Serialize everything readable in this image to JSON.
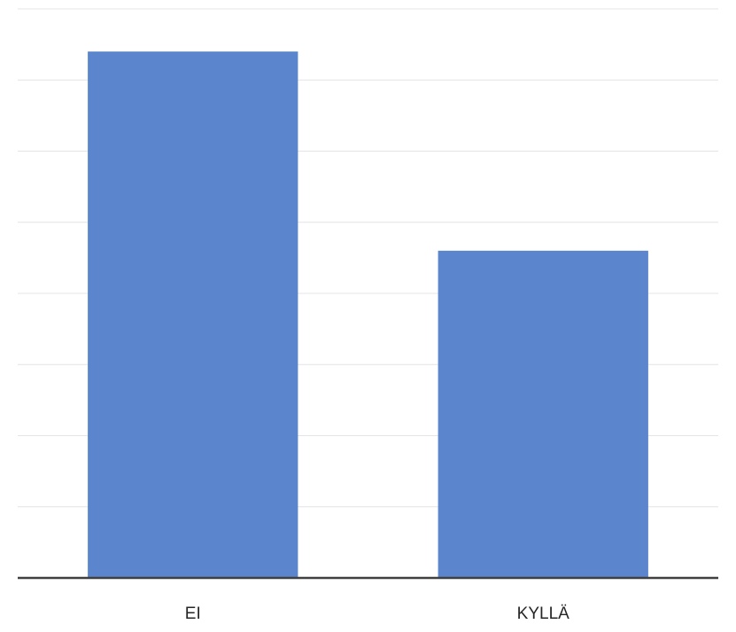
{
  "chart_data": {
    "type": "bar",
    "categories": [
      "EI",
      "KYLLÄ"
    ],
    "values": [
      7.4,
      4.6
    ],
    "title": "",
    "xlabel": "",
    "ylabel": "",
    "ylim": [
      0,
      8
    ],
    "grid": true,
    "legend": "none",
    "colors": {
      "bar": "#5b85cc",
      "grid": "#e4e4e4",
      "axis": "#404040",
      "text": "#262626"
    }
  }
}
